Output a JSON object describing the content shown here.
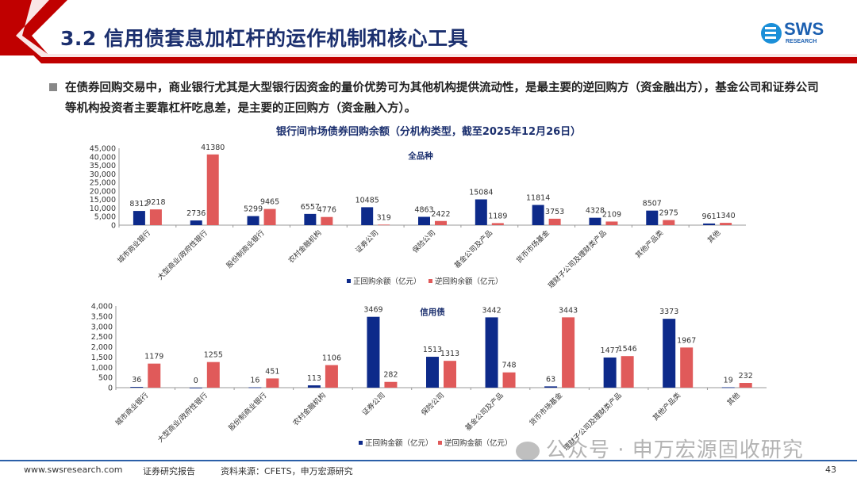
{
  "header": {
    "title": "3.2 信用债套息加杠杆的运作机制和核心工具",
    "logo_text": "SWS",
    "logo_sub": "RESEARCH",
    "accent_color": "#c00000"
  },
  "bullet": {
    "text": "在债券回购交易中，商业银行尤其是大型银行因资金的量价优势可为其他机构提供流动性，是最主要的逆回购方（资金融出方），基金公司和证券公司等机构投资者主要靠杠杆吃息差，是主要的正回购方（资金融入方）。"
  },
  "figure_title": "银行间市场债券回购余额（分机构类型，截至2025年12月26日）",
  "chart_data": [
    {
      "type": "bar",
      "title": "全品种",
      "categories": [
        "城市商业银行",
        "大型商业/政府性银行",
        "股份制商业银行",
        "农村金融机构",
        "证券公司",
        "保险公司",
        "基金公司及产品",
        "货币市场基金",
        "理财子公司及理财类产品",
        "其他产品类",
        "其他"
      ],
      "series": [
        {
          "name": "正回购余额（亿元）",
          "color": "#0d2a8a",
          "values": [
            8312,
            2736,
            5299,
            6557,
            10485,
            4863,
            15084,
            11814,
            4328,
            8507,
            961
          ]
        },
        {
          "name": "逆回购余额（亿元）",
          "color": "#e05a5a",
          "values": [
            9218,
            41380,
            9465,
            4776,
            319,
            2422,
            1189,
            3753,
            2109,
            2975,
            1340
          ]
        }
      ],
      "ylim": [
        0,
        45000
      ],
      "yticks": [
        "0",
        "5,000",
        "10,000",
        "15,000",
        "20,000",
        "25,000",
        "30,000",
        "35,000",
        "40,000",
        "45,000"
      ],
      "legend": "bottom",
      "grid": false
    },
    {
      "type": "bar",
      "title": "信用债",
      "categories": [
        "城市商业银行",
        "大型商业/政府性银行",
        "股份制商业银行",
        "农村金融机构",
        "证券公司",
        "保险公司",
        "基金公司及产品",
        "货币市场基金",
        "理财子公司及理财类产品",
        "其他产品类",
        "其他"
      ],
      "series": [
        {
          "name": "正回购金额（亿元）",
          "color": "#0d2a8a",
          "values": [
            36,
            0,
            16,
            113,
            3469,
            1513,
            3442,
            63,
            1477,
            3373,
            19
          ]
        },
        {
          "name": "逆回购金额（亿元）",
          "color": "#e05a5a",
          "values": [
            1179,
            1255,
            451,
            1106,
            282,
            1313,
            748,
            3443,
            1546,
            1967,
            232
          ]
        }
      ],
      "ylim": [
        0,
        4000
      ],
      "yticks": [
        "0",
        "500",
        "1,000",
        "1,500",
        "2,000",
        "2,500",
        "3,000",
        "3,500",
        "4,000"
      ],
      "legend": "bottom",
      "grid": false
    }
  ],
  "watermark": "公众号 · 申万宏源固收研究",
  "footer": {
    "website": "www.swsresearch.com",
    "report_type": "证券研究报告",
    "source": "资料来源：CFETS，申万宏源研究",
    "page_number": "43"
  }
}
